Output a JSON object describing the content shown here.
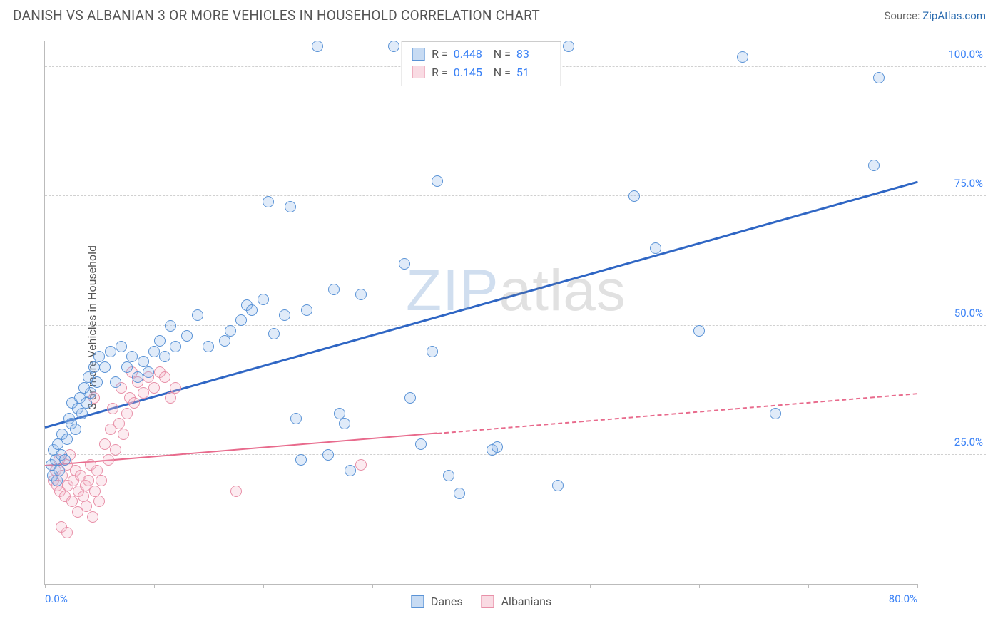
{
  "header": {
    "title": "DANISH VS ALBANIAN 3 OR MORE VEHICLES IN HOUSEHOLD CORRELATION CHART",
    "source_prefix": "Source: ",
    "source_link": "ZipAtlas.com"
  },
  "chart": {
    "type": "scatter",
    "ylabel": "3 or more Vehicles in Household",
    "xlim": [
      0,
      80
    ],
    "ylim": [
      0,
      105
    ],
    "x_ticks": [
      0,
      10,
      20,
      30,
      40,
      50,
      60,
      70,
      80
    ],
    "x_tick_labels": {
      "0": "0.0%",
      "80": "80.0%"
    },
    "y_gridlines": [
      25,
      50,
      75,
      100
    ],
    "y_tick_labels": {
      "25": "25.0%",
      "50": "50.0%",
      "75": "75.0%",
      "100": "100.0%"
    },
    "background_color": "#ffffff",
    "grid_color": "#d0d0d0",
    "axis_color": "#bbbbbb",
    "tick_label_color": "#3b82f6",
    "marker_radius": 8,
    "marker_border_width": 1.2,
    "marker_fill_opacity": 0.28,
    "watermark": {
      "line1": "ZIP",
      "line2": "atlas"
    },
    "series": [
      {
        "name": "Danes",
        "color_border": "#5a93d6",
        "color_fill": "#8fb8e8",
        "trend": {
          "x1": 0,
          "y1": 30.5,
          "x2": 80,
          "y2": 78,
          "color": "#2f66c4",
          "width": 3,
          "dash": false,
          "solid_until_x": 80
        },
        "R": "0.448",
        "N": "83",
        "points": [
          [
            0.6,
            23
          ],
          [
            0.7,
            21
          ],
          [
            0.8,
            26
          ],
          [
            1.0,
            24
          ],
          [
            1.1,
            20
          ],
          [
            1.2,
            27
          ],
          [
            1.3,
            22
          ],
          [
            1.5,
            25
          ],
          [
            1.6,
            29
          ],
          [
            1.8,
            24
          ],
          [
            2.0,
            28
          ],
          [
            2.2,
            32
          ],
          [
            2.4,
            31
          ],
          [
            2.5,
            35
          ],
          [
            2.8,
            30
          ],
          [
            3.0,
            34
          ],
          [
            3.2,
            36
          ],
          [
            3.4,
            33
          ],
          [
            3.6,
            38
          ],
          [
            3.8,
            35
          ],
          [
            4.0,
            40
          ],
          [
            4.2,
            37
          ],
          [
            4.5,
            42
          ],
          [
            4.8,
            39
          ],
          [
            5.0,
            44
          ],
          [
            5.5,
            42
          ],
          [
            6.0,
            45
          ],
          [
            6.5,
            39
          ],
          [
            7.0,
            46
          ],
          [
            7.5,
            42
          ],
          [
            8.0,
            44
          ],
          [
            8.5,
            40
          ],
          [
            9.0,
            43
          ],
          [
            9.5,
            41
          ],
          [
            10,
            45
          ],
          [
            10.5,
            47
          ],
          [
            11,
            44
          ],
          [
            11.5,
            50
          ],
          [
            12,
            46
          ],
          [
            13,
            48
          ],
          [
            14,
            52
          ],
          [
            15,
            46
          ],
          [
            16.5,
            47
          ],
          [
            17,
            49
          ],
          [
            18,
            51
          ],
          [
            18.5,
            54
          ],
          [
            19,
            53
          ],
          [
            20,
            55
          ],
          [
            20.5,
            74
          ],
          [
            21,
            48.5
          ],
          [
            22,
            52
          ],
          [
            22.5,
            73
          ],
          [
            23,
            32
          ],
          [
            23.5,
            24
          ],
          [
            24,
            53
          ],
          [
            25,
            104
          ],
          [
            26,
            25
          ],
          [
            26.5,
            57
          ],
          [
            27,
            33
          ],
          [
            27.5,
            31
          ],
          [
            28,
            22
          ],
          [
            29,
            56
          ],
          [
            32,
            104
          ],
          [
            33,
            62
          ],
          [
            33.5,
            36
          ],
          [
            34.5,
            27
          ],
          [
            35.5,
            45
          ],
          [
            36,
            78
          ],
          [
            37,
            21
          ],
          [
            38,
            17.5
          ],
          [
            38.5,
            104
          ],
          [
            40,
            104
          ],
          [
            41,
            26
          ],
          [
            41.5,
            26.5
          ],
          [
            47,
            19
          ],
          [
            48,
            104
          ],
          [
            54,
            75
          ],
          [
            56,
            65
          ],
          [
            60,
            49
          ],
          [
            64,
            102
          ],
          [
            67,
            33
          ],
          [
            76,
            81
          ],
          [
            76.5,
            98
          ]
        ]
      },
      {
        "name": "Albanians",
        "color_border": "#e890a8",
        "color_fill": "#f4b8c8",
        "trend": {
          "x1": 0,
          "y1": 23,
          "x2": 80,
          "y2": 37,
          "color": "#e86a8c",
          "width": 2.4,
          "dash": true,
          "solid_until_x": 36
        },
        "R": "0.145",
        "N": "51",
        "points": [
          [
            0.8,
            20
          ],
          [
            1.0,
            22
          ],
          [
            1.1,
            19
          ],
          [
            1.3,
            24
          ],
          [
            1.4,
            18
          ],
          [
            1.6,
            21
          ],
          [
            1.8,
            17
          ],
          [
            2.0,
            23
          ],
          [
            2.1,
            19
          ],
          [
            2.3,
            25
          ],
          [
            2.5,
            16
          ],
          [
            2.6,
            20
          ],
          [
            2.8,
            22
          ],
          [
            3.0,
            14
          ],
          [
            3.1,
            18
          ],
          [
            3.3,
            21
          ],
          [
            3.5,
            17
          ],
          [
            3.7,
            19
          ],
          [
            3.8,
            15
          ],
          [
            4.0,
            20
          ],
          [
            4.2,
            23
          ],
          [
            4.4,
            13
          ],
          [
            4.6,
            18
          ],
          [
            4.8,
            22
          ],
          [
            5.0,
            16
          ],
          [
            5.2,
            20
          ],
          [
            5.5,
            27
          ],
          [
            5.8,
            24
          ],
          [
            6.0,
            30
          ],
          [
            6.2,
            34
          ],
          [
            6.5,
            26
          ],
          [
            6.8,
            31
          ],
          [
            7.0,
            38
          ],
          [
            7.2,
            29
          ],
          [
            7.5,
            33
          ],
          [
            7.8,
            36
          ],
          [
            8.0,
            41
          ],
          [
            8.2,
            35
          ],
          [
            8.5,
            39
          ],
          [
            9.0,
            37
          ],
          [
            9.5,
            40
          ],
          [
            10,
            38
          ],
          [
            10.5,
            41
          ],
          [
            11,
            40
          ],
          [
            11.5,
            36
          ],
          [
            12,
            38
          ],
          [
            1.5,
            11
          ],
          [
            2.0,
            10
          ],
          [
            17.5,
            18
          ],
          [
            29,
            23
          ],
          [
            4.5,
            36
          ]
        ]
      }
    ],
    "legend_top": [
      {
        "series_idx": 0
      },
      {
        "series_idx": 1
      }
    ],
    "legend_bottom": [
      {
        "series_idx": 0
      },
      {
        "series_idx": 1
      }
    ]
  }
}
